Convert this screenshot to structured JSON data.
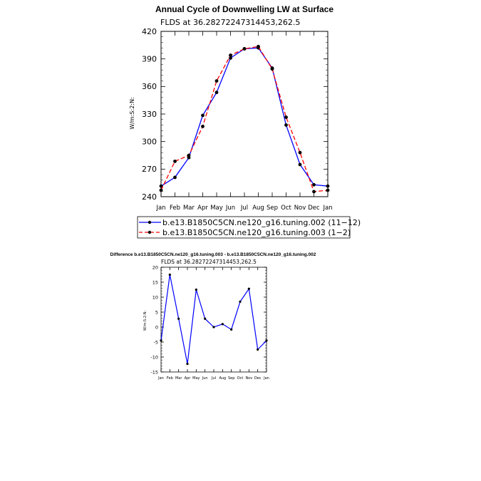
{
  "chart_data": [
    {
      "type": "line",
      "title": "Annual Cycle of Downwelling LW at Surface",
      "subtitle": "FLDS at 36.28272247314453,262.5",
      "ylabel": "W/m:S:2:N:",
      "xlabel": "",
      "categories": [
        "Jan",
        "Feb",
        "Mar",
        "Apr",
        "May",
        "Jun",
        "Jul",
        "Aug",
        "Sep",
        "Oct",
        "Nov",
        "Dec",
        "Jan"
      ],
      "ylim": [
        240,
        420
      ],
      "yticks": [
        240,
        270,
        300,
        330,
        360,
        390,
        420
      ],
      "grid": false,
      "legend_position": "bottom",
      "series": [
        {
          "name": "b.e13.B1850C5CN.ne120_g16.tuning.002 (11−12)",
          "color": "#0000ff",
          "dash": "solid",
          "values": [
            251.5,
            261.0,
            282.5,
            328.5,
            353.5,
            391.0,
            401.0,
            402.0,
            380.0,
            318.0,
            275.0,
            253.0,
            251.5
          ]
        },
        {
          "name": "b.e13.B1850C5CN.ne120_g16.tuning.003 (1−2)",
          "color": "#ff0000",
          "dash": "dashed",
          "values": [
            247.0,
            278.5,
            285.0,
            316.5,
            366.0,
            394.0,
            401.0,
            403.5,
            379.0,
            326.5,
            288.0,
            245.5,
            247.0
          ]
        }
      ]
    },
    {
      "type": "line",
      "title": "Difference b.e13.B1850C5CN.ne120_g16.tuning.003 - b.e13.B1850C5CN.ne120_g16.tuning.002",
      "subtitle": "FLDS at 36.28272247314453,262.5",
      "ylabel": "W/m:S:2:N:",
      "xlabel": "",
      "categories": [
        "Jan",
        "Feb",
        "Mar",
        "Apr",
        "May",
        "Jun",
        "Jul",
        "Aug",
        "Sep",
        "Oct",
        "Nov",
        "Dec",
        "Jan"
      ],
      "ylim": [
        -15,
        20
      ],
      "yticks": [
        -15,
        -10,
        -5,
        0,
        5,
        10,
        15,
        20
      ],
      "grid": false,
      "series": [
        {
          "color": "#0000ff",
          "values": [
            -4.5,
            17.5,
            2.8,
            -12.3,
            12.5,
            2.8,
            0.0,
            1.0,
            -0.8,
            8.5,
            12.8,
            -7.5,
            -4.5
          ]
        }
      ]
    }
  ]
}
